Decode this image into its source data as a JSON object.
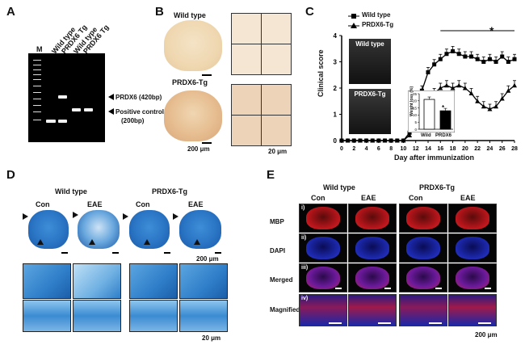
{
  "panels": {
    "a": "A",
    "b": "B",
    "c": "C",
    "d": "D",
    "e": "E"
  },
  "panel_a": {
    "lanes": [
      "M",
      "Wild type",
      "PRDX6 Tg",
      "Wild type",
      "PRDX6 Tg"
    ],
    "band1": "PRDX6 (420bp)",
    "band2_line1": "Positive control",
    "band2_line2": "(200bp)"
  },
  "panel_b": {
    "row1": "Wild type",
    "row2": "PRDX6-Tg",
    "scale1": "200 μm",
    "scale2": "20 μm"
  },
  "panel_c": {
    "legend": [
      "Wild type",
      "PRDX6-Tg"
    ],
    "ylabel": "Clinical score",
    "xlabel": "Day after immunization",
    "star": "*",
    "photo1": "Wild type",
    "photo2": "PRDX6-Tg",
    "inset_ylabel": "Weight loss (%)",
    "inset_cats": [
      "Wild",
      "PRDX6"
    ],
    "inset_star": "*"
  },
  "chart_data": [
    {
      "type": "line",
      "xlabel": "Day after immunization",
      "ylabel": "Clinical score",
      "xlim": [
        0,
        28
      ],
      "ylim": [
        0,
        4
      ],
      "xticks": [
        0,
        2,
        4,
        6,
        8,
        10,
        12,
        14,
        16,
        18,
        20,
        22,
        24,
        26,
        28
      ],
      "yticks": [
        0,
        1,
        2,
        3,
        4
      ],
      "x": [
        0,
        1,
        2,
        3,
        4,
        5,
        6,
        7,
        8,
        9,
        10,
        11,
        12,
        13,
        14,
        15,
        16,
        17,
        18,
        19,
        20,
        21,
        22,
        23,
        24,
        25,
        26,
        27,
        28
      ],
      "series": [
        {
          "name": "Wild type",
          "marker": "square",
          "values": [
            0,
            0,
            0,
            0,
            0,
            0,
            0,
            0,
            0,
            0,
            0,
            0.3,
            1.0,
            1.9,
            2.6,
            2.9,
            3.1,
            3.3,
            3.4,
            3.3,
            3.2,
            3.2,
            3.1,
            3.0,
            3.1,
            3.0,
            3.2,
            3.0,
            3.1
          ]
        },
        {
          "name": "PRDX6-Tg",
          "marker": "triangle",
          "values": [
            0,
            0,
            0,
            0,
            0,
            0,
            0,
            0,
            0,
            0,
            0,
            0.2,
            0.8,
            1.3,
            1.6,
            1.8,
            2.0,
            2.1,
            2.0,
            2.1,
            2.0,
            1.8,
            1.5,
            1.3,
            1.2,
            1.3,
            1.6,
            1.9,
            2.1
          ]
        }
      ]
    },
    {
      "type": "bar",
      "ylabel": "Weight loss (%)",
      "categories": [
        "Wild",
        "PRDX6"
      ],
      "values": [
        21,
        13
      ],
      "ylim": [
        0,
        25
      ],
      "yticks": [
        0,
        5,
        10,
        15,
        20,
        25
      ]
    }
  ],
  "panel_d": {
    "group1": "Wild type",
    "group2": "PRDX6-Tg",
    "col_con": "Con",
    "col_eae": "EAE",
    "scale1": "200 μm",
    "scale2": "20 μm"
  },
  "panel_e": {
    "group1": "Wild type",
    "group2": "PRDX6-Tg",
    "col_con": "Con",
    "col_eae": "EAE",
    "rows": [
      "MBP",
      "DAPI",
      "Merged",
      "Magnified"
    ],
    "roman": [
      "i)",
      "ii)",
      "iii)",
      "iv)"
    ],
    "scale": "200 μm"
  }
}
